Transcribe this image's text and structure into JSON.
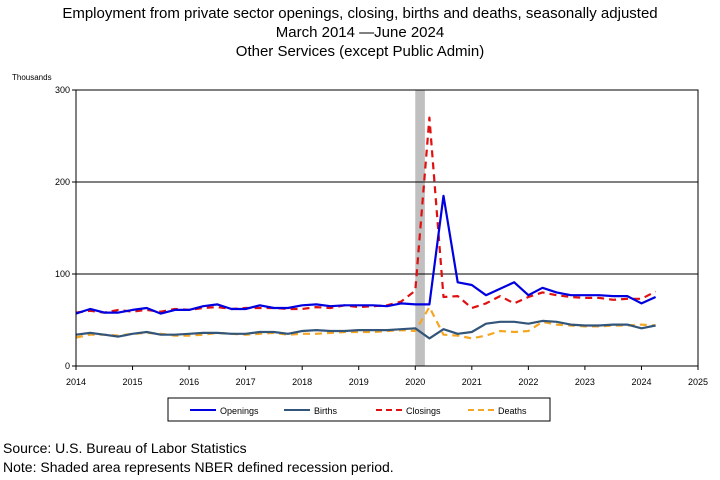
{
  "header": {
    "title_line1": "Employment from private sector openings, closing, births and deaths, seasonally adjusted",
    "title_line2": "March 2014 —June 2024",
    "title_line3": "Other Services (except Public Admin)"
  },
  "footer": {
    "source": "Source: U.S. Bureau of Labor Statistics",
    "note": "Note: Shaded area represents NBER defined recession period."
  },
  "chart_data": {
    "type": "line",
    "ylabel": "Thousands",
    "xlim": [
      2014,
      2025
    ],
    "ylim": [
      0,
      300
    ],
    "x_ticks": [
      "2014",
      "2015",
      "2016",
      "2017",
      "2018",
      "2019",
      "2020",
      "2021",
      "2022",
      "2023",
      "2024",
      "2025"
    ],
    "y_ticks": [
      "0",
      "100",
      "200",
      "300"
    ],
    "grid": "horizontal",
    "legend_position": "bottom",
    "recession": {
      "start": 2020.0,
      "end": 2020.17,
      "color": "#c0c0c0"
    },
    "x": [
      "2014 Q1",
      "2014 Q2",
      "2014 Q3",
      "2014 Q4",
      "2015 Q1",
      "2015 Q2",
      "2015 Q3",
      "2015 Q4",
      "2016 Q1",
      "2016 Q2",
      "2016 Q3",
      "2016 Q4",
      "2017 Q1",
      "2017 Q2",
      "2017 Q3",
      "2017 Q4",
      "2018 Q1",
      "2018 Q2",
      "2018 Q3",
      "2018 Q4",
      "2019 Q1",
      "2019 Q2",
      "2019 Q3",
      "2019 Q4",
      "2020 Q1",
      "2020 Q2",
      "2020 Q3",
      "2020 Q4",
      "2021 Q1",
      "2021 Q2",
      "2021 Q3",
      "2021 Q4",
      "2022 Q1",
      "2022 Q2",
      "2022 Q3",
      "2022 Q4",
      "2023 Q1",
      "2023 Q2",
      "2023 Q3",
      "2023 Q4",
      "2024 Q1",
      "2024 Q2"
    ],
    "series": [
      {
        "name": "Openings",
        "color": "#0000e0",
        "dash": "solid",
        "values": [
          57,
          62,
          58,
          58,
          61,
          63,
          57,
          61,
          61,
          65,
          67,
          62,
          62,
          66,
          63,
          63,
          66,
          67,
          65,
          66,
          66,
          66,
          65,
          68,
          67,
          67,
          185,
          91,
          88,
          77,
          84,
          91,
          77,
          85,
          80,
          77,
          77,
          77,
          76,
          76,
          68,
          75
        ]
      },
      {
        "name": "Births",
        "color": "#33557a",
        "dash": "solid",
        "values": [
          34,
          36,
          34,
          32,
          35,
          37,
          34,
          34,
          35,
          36,
          36,
          35,
          35,
          37,
          37,
          35,
          38,
          39,
          38,
          38,
          39,
          39,
          39,
          40,
          41,
          30,
          40,
          35,
          37,
          46,
          48,
          48,
          46,
          49,
          48,
          45,
          44,
          44,
          45,
          45,
          41,
          44
        ]
      },
      {
        "name": "Closings",
        "color": "#e01010",
        "dash": "dashed",
        "values": [
          58,
          60,
          58,
          61,
          59,
          61,
          59,
          62,
          61,
          63,
          64,
          62,
          63,
          63,
          63,
          62,
          62,
          64,
          63,
          66,
          64,
          65,
          66,
          70,
          82,
          270,
          75,
          76,
          63,
          68,
          76,
          68,
          75,
          80,
          77,
          75,
          74,
          74,
          72,
          73,
          73,
          81
        ]
      },
      {
        "name": "Deaths",
        "color": "#f5a623",
        "dash": "dashed",
        "values": [
          31,
          34,
          34,
          33,
          35,
          36,
          35,
          33,
          33,
          34,
          36,
          35,
          34,
          35,
          36,
          34,
          35,
          35,
          36,
          37,
          37,
          37,
          38,
          39,
          38,
          64,
          34,
          33,
          30,
          33,
          38,
          37,
          38,
          48,
          45,
          44,
          43,
          43,
          44,
          44,
          45,
          44
        ]
      }
    ]
  }
}
